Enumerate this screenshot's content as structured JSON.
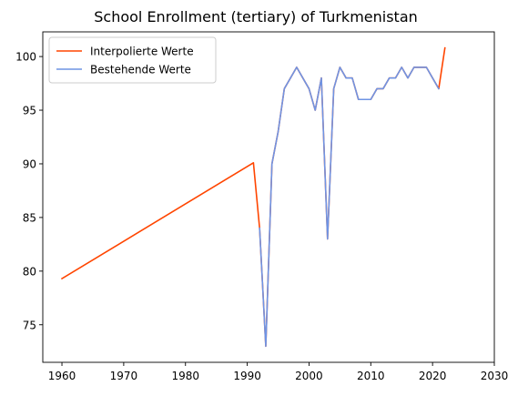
{
  "chart_data": {
    "type": "line",
    "title": "School Enrollment (tertiary) of Turkmenistan",
    "xlabel": "",
    "ylabel": "",
    "xlim": [
      1956.9,
      2030
    ],
    "ylim": [
      71.5,
      102.3
    ],
    "xticks": [
      1960,
      1970,
      1980,
      1990,
      2000,
      2010,
      2020,
      2030
    ],
    "yticks": [
      75,
      80,
      85,
      90,
      95,
      100
    ],
    "grid": false,
    "legend_position": "upper left",
    "series": [
      {
        "name": "Interpolierte Werte",
        "color": "#ff4500",
        "x": [
          1960,
          1991,
          1992,
          1993,
          1994,
          1995,
          1996,
          1997,
          1998,
          1999,
          2000,
          2001,
          2002,
          2003,
          2004,
          2005,
          2006,
          2007,
          2008,
          2009,
          2010,
          2011,
          2012,
          2013,
          2014,
          2015,
          2016,
          2017,
          2018,
          2019,
          2020,
          2021,
          2022
        ],
        "y": [
          79.3,
          90.1,
          84,
          73,
          90,
          93,
          97,
          98,
          99,
          98,
          97,
          95,
          98,
          83,
          97,
          99,
          98,
          98,
          96,
          96,
          96,
          97,
          97,
          98,
          98,
          99,
          98,
          99,
          99,
          99,
          98,
          97,
          100.8
        ]
      },
      {
        "name": "Bestehende Werte",
        "color": "#6f94e4",
        "x": [
          1992,
          1993,
          1994,
          1995,
          1996,
          1997,
          1998,
          1999,
          2000,
          2001,
          2002,
          2003,
          2004,
          2005,
          2006,
          2007,
          2008,
          2009,
          2010,
          2011,
          2012,
          2013,
          2014,
          2015,
          2016,
          2017,
          2018,
          2019,
          2020,
          2021
        ],
        "y": [
          84,
          73,
          90,
          93,
          97,
          98,
          99,
          98,
          97,
          95,
          98,
          83,
          97,
          99,
          98,
          98,
          96,
          96,
          96,
          97,
          97,
          98,
          98,
          99,
          98,
          99,
          99,
          99,
          98,
          97
        ]
      }
    ]
  }
}
